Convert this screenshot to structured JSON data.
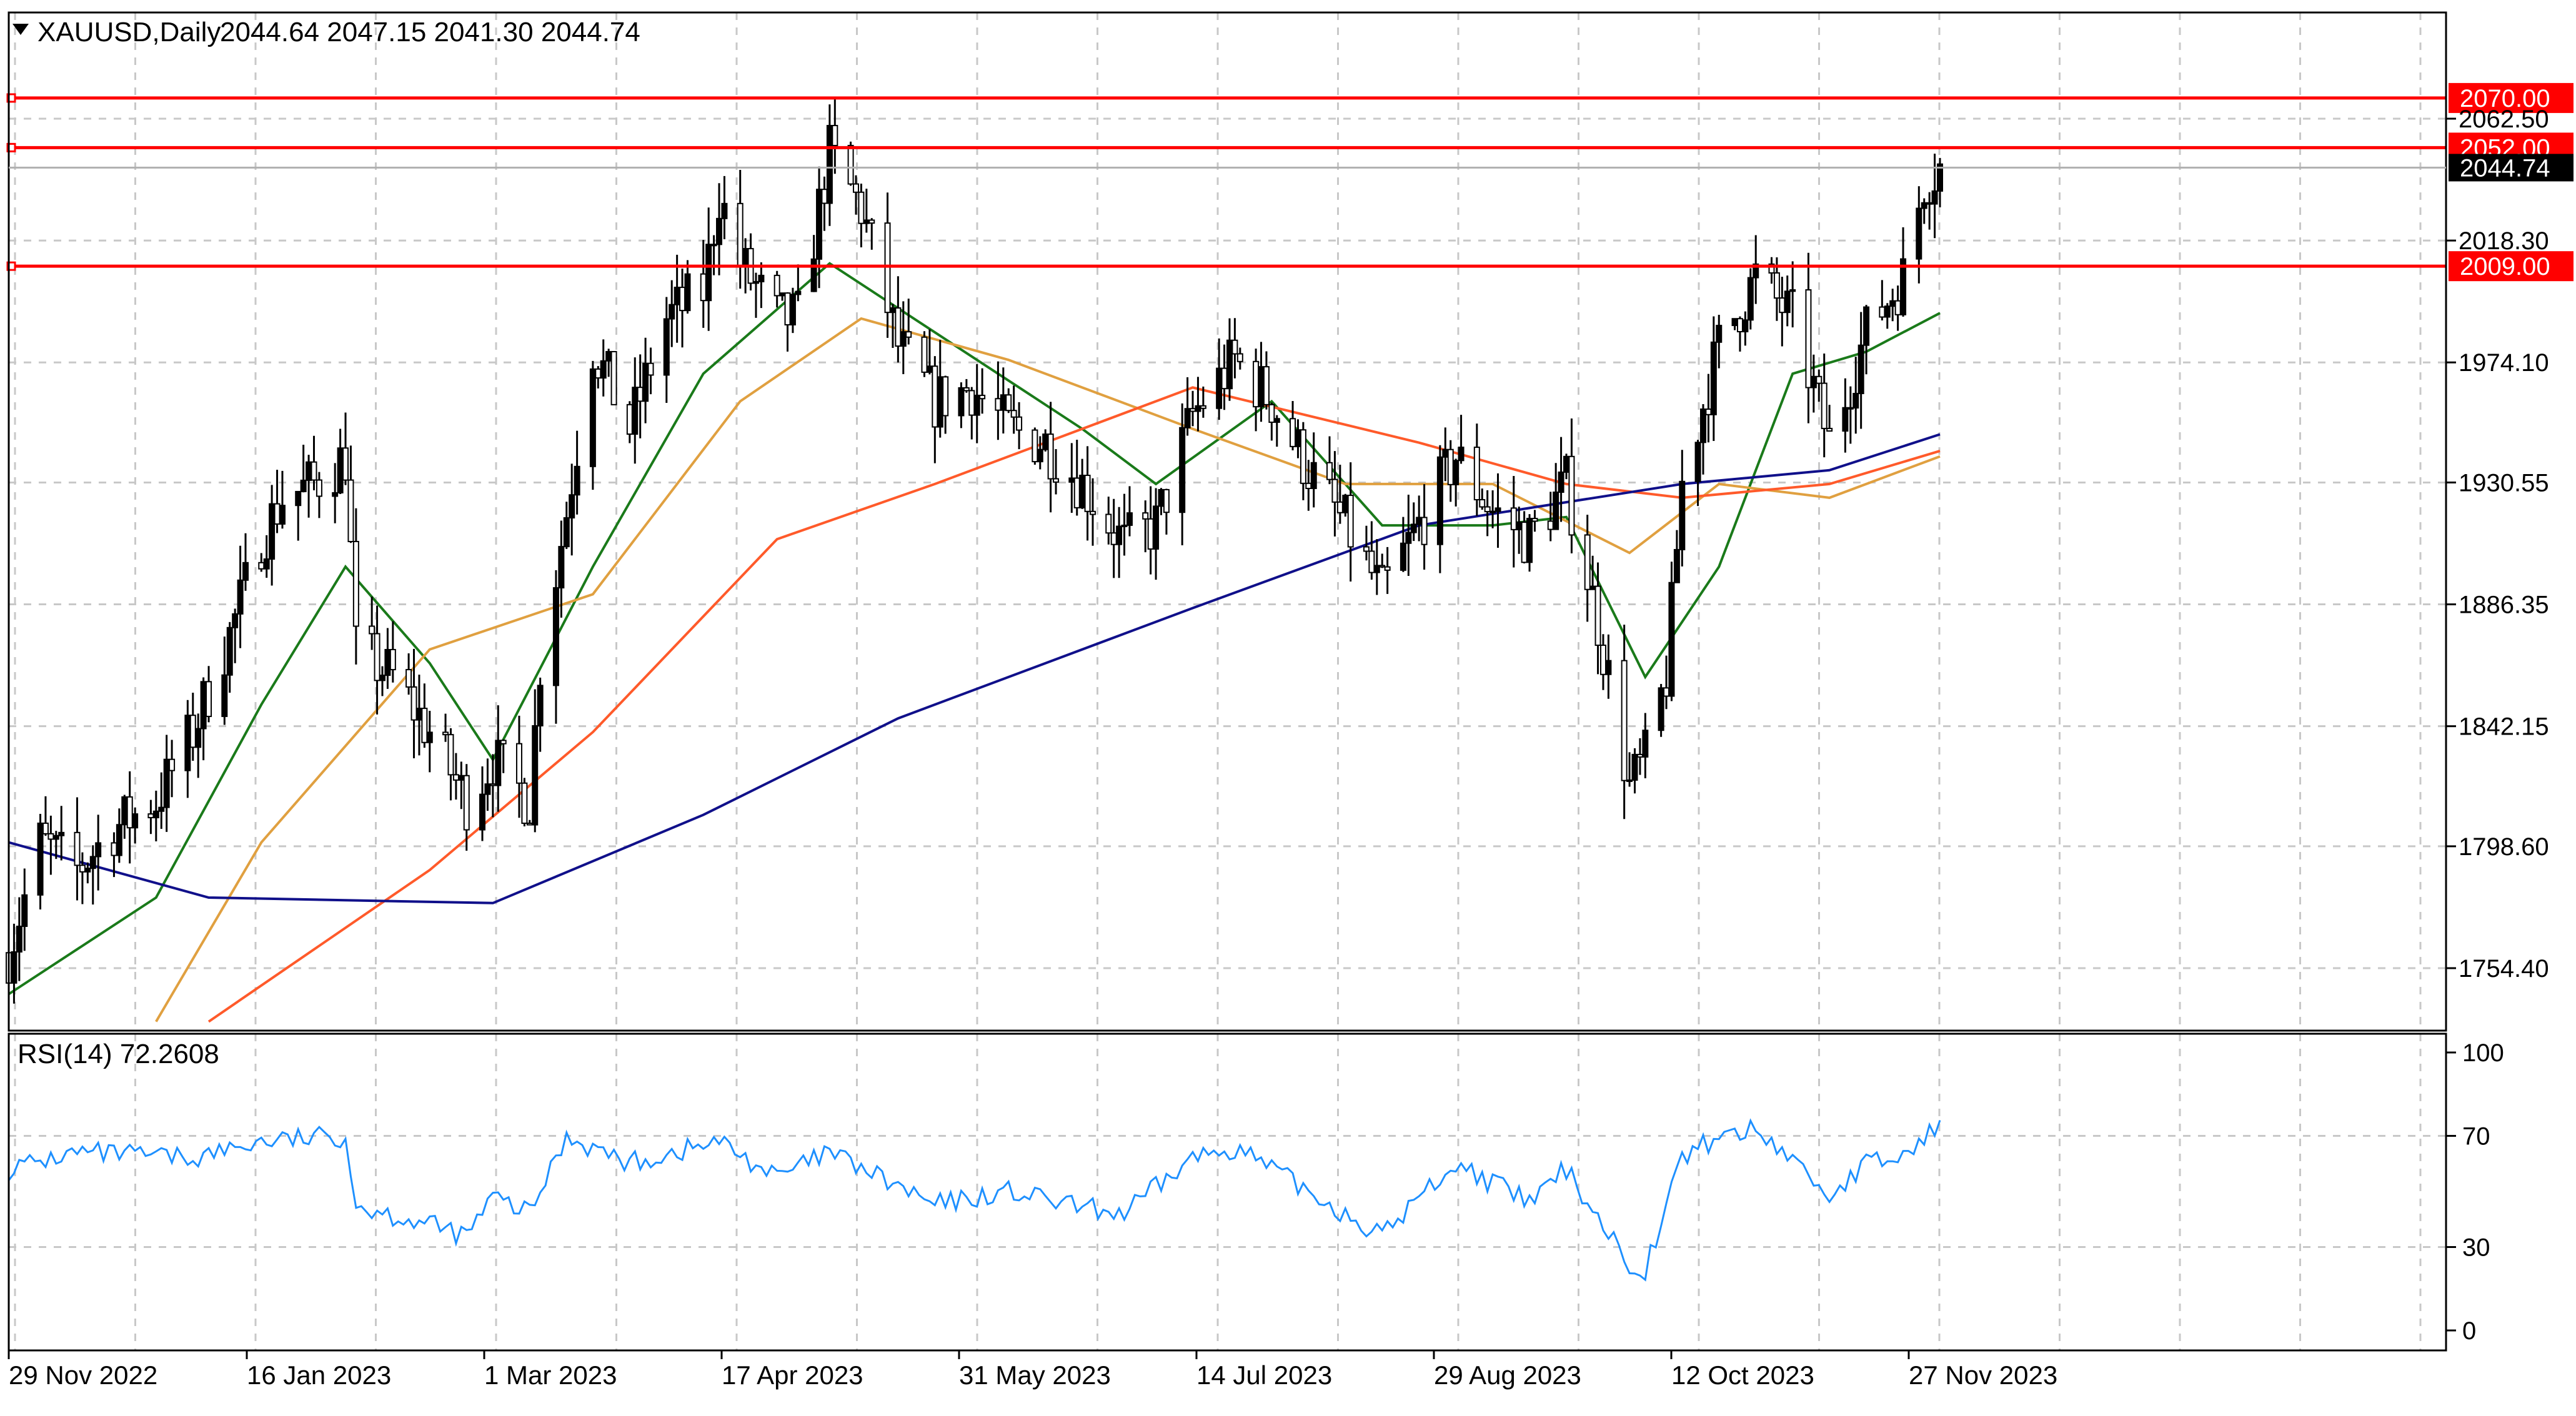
{
  "header": {
    "symbol": "XAUUSD,Daily",
    "ohlc": "2044.64 2047.15 2041.30 2044.74"
  },
  "price_axis": {
    "ticks": [
      "2062.50",
      "2018.30",
      "1974.10",
      "1930.55",
      "1886.35",
      "1842.15",
      "1798.60",
      "1754.40"
    ]
  },
  "current_price": {
    "label": "2044.74",
    "value": 2044.74
  },
  "levels": [
    {
      "label": "2070.00",
      "value": 2070.0,
      "color": "#ff0000"
    },
    {
      "label": "2052.00",
      "value": 2052.0,
      "color": "#ff0000"
    },
    {
      "label": "2009.00",
      "value": 2009.0,
      "color": "#ff0000"
    }
  ],
  "rsi_panel": {
    "label": "RSI(14) 72.2608",
    "ticks": [
      "100",
      "70",
      "30",
      "0"
    ],
    "line_color": "#1e90ff"
  },
  "time_axis": {
    "ticks": [
      "29 Nov 2022",
      "16 Jan 2023",
      "1 Mar 2023",
      "17 Apr 2023",
      "31 May 2023",
      "14 Jul 2023",
      "29 Aug 2023",
      "12 Oct 2023",
      "27 Nov 2023"
    ]
  },
  "colors": {
    "ma_fast": "#1a7a1a",
    "ma_mid": "#e0a040",
    "ma_slow": "#ff5a2a",
    "ma_200": "#10108a",
    "level": "#ff0000",
    "candle": "#000000",
    "grid": "#c8c8c8"
  },
  "chart_data": {
    "type": "candlestick",
    "symbol": "XAUUSD",
    "timeframe": "Daily",
    "x_range": [
      "2022-11-29",
      "2023-12-01"
    ],
    "ylim": [
      1732,
      2102
    ],
    "close_path": [
      [
        "2022-11-29",
        1760
      ],
      [
        "2022-12-05",
        1800
      ],
      [
        "2022-12-12",
        1790
      ],
      [
        "2022-12-19",
        1805
      ],
      [
        "2022-12-27",
        1815
      ],
      [
        "2023-01-03",
        1840
      ],
      [
        "2023-01-10",
        1875
      ],
      [
        "2023-01-16",
        1910
      ],
      [
        "2023-01-20",
        1925
      ],
      [
        "2023-01-26",
        1930
      ],
      [
        "2023-02-01",
        1940
      ],
      [
        "2023-02-03",
        1870
      ],
      [
        "2023-02-10",
        1860
      ],
      [
        "2023-02-17",
        1840
      ],
      [
        "2023-02-24",
        1815
      ],
      [
        "2023-03-01",
        1830
      ],
      [
        "2023-03-08",
        1815
      ],
      [
        "2023-03-10",
        1865
      ],
      [
        "2023-03-15",
        1920
      ],
      [
        "2023-03-20",
        1980
      ],
      [
        "2023-03-27",
        1950
      ],
      [
        "2023-04-03",
        1990
      ],
      [
        "2023-04-10",
        2000
      ],
      [
        "2023-04-13",
        2035
      ],
      [
        "2023-04-17",
        2010
      ],
      [
        "2023-04-24",
        1990
      ],
      [
        "2023-04-28",
        1990
      ],
      [
        "2023-05-04",
        2050
      ],
      [
        "2023-05-10",
        2030
      ],
      [
        "2023-05-17",
        1980
      ],
      [
        "2023-05-24",
        1960
      ],
      [
        "2023-05-31",
        1965
      ],
      [
        "2023-06-07",
        1950
      ],
      [
        "2023-06-14",
        1945
      ],
      [
        "2023-06-21",
        1930
      ],
      [
        "2023-06-29",
        1908
      ],
      [
        "2023-07-05",
        1915
      ],
      [
        "2023-07-12",
        1955
      ],
      [
        "2023-07-20",
        1975
      ],
      [
        "2023-07-27",
        1960
      ],
      [
        "2023-08-03",
        1935
      ],
      [
        "2023-08-10",
        1915
      ],
      [
        "2023-08-17",
        1890
      ],
      [
        "2023-08-24",
        1915
      ],
      [
        "2023-08-31",
        1940
      ],
      [
        "2023-09-07",
        1920
      ],
      [
        "2023-09-14",
        1910
      ],
      [
        "2023-09-21",
        1930
      ],
      [
        "2023-09-27",
        1880
      ],
      [
        "2023-10-03",
        1820
      ],
      [
        "2023-10-06",
        1830
      ],
      [
        "2023-10-10",
        1860
      ],
      [
        "2023-10-13",
        1930
      ],
      [
        "2023-10-20",
        1980
      ],
      [
        "2023-10-27",
        2005
      ],
      [
        "2023-11-03",
        1990
      ],
      [
        "2023-11-10",
        1945
      ],
      [
        "2023-11-17",
        1985
      ],
      [
        "2023-11-24",
        2005
      ],
      [
        "2023-11-28",
        2040
      ],
      [
        "2023-12-01",
        2044.74
      ]
    ],
    "moving_averages": [
      {
        "role": "fast",
        "points": [
          [
            "2022-11-29",
            1745
          ],
          [
            "2022-12-27",
            1780
          ],
          [
            "2023-01-16",
            1850
          ],
          [
            "2023-02-01",
            1900
          ],
          [
            "2023-02-17",
            1865
          ],
          [
            "2023-03-01",
            1830
          ],
          [
            "2023-03-20",
            1900
          ],
          [
            "2023-04-10",
            1970
          ],
          [
            "2023-05-04",
            2010
          ],
          [
            "2023-05-24",
            1985
          ],
          [
            "2023-06-21",
            1950
          ],
          [
            "2023-07-05",
            1930
          ],
          [
            "2023-07-27",
            1960
          ],
          [
            "2023-08-17",
            1915
          ],
          [
            "2023-09-07",
            1915
          ],
          [
            "2023-09-21",
            1918
          ],
          [
            "2023-10-06",
            1860
          ],
          [
            "2023-10-20",
            1900
          ],
          [
            "2023-11-03",
            1970
          ],
          [
            "2023-11-17",
            1978
          ],
          [
            "2023-12-01",
            1992
          ]
        ]
      },
      {
        "role": "mid",
        "points": [
          [
            "2022-12-27",
            1735
          ],
          [
            "2023-01-16",
            1800
          ],
          [
            "2023-02-17",
            1870
          ],
          [
            "2023-03-20",
            1890
          ],
          [
            "2023-04-17",
            1960
          ],
          [
            "2023-05-10",
            1990
          ],
          [
            "2023-06-07",
            1975
          ],
          [
            "2023-07-12",
            1950
          ],
          [
            "2023-08-10",
            1930
          ],
          [
            "2023-09-07",
            1930
          ],
          [
            "2023-10-03",
            1905
          ],
          [
            "2023-10-20",
            1930
          ],
          [
            "2023-11-10",
            1925
          ],
          [
            "2023-12-01",
            1940
          ]
        ]
      },
      {
        "role": "slow",
        "points": [
          [
            "2023-01-06",
            1735
          ],
          [
            "2023-02-17",
            1790
          ],
          [
            "2023-03-20",
            1840
          ],
          [
            "2023-04-24",
            1910
          ],
          [
            "2023-05-24",
            1930
          ],
          [
            "2023-07-12",
            1965
          ],
          [
            "2023-08-24",
            1945
          ],
          [
            "2023-09-21",
            1930
          ],
          [
            "2023-10-13",
            1925
          ],
          [
            "2023-11-10",
            1930
          ],
          [
            "2023-12-01",
            1942
          ]
        ]
      },
      {
        "role": "ma200",
        "points": [
          [
            "2022-11-29",
            1800
          ],
          [
            "2023-01-06",
            1780
          ],
          [
            "2023-03-01",
            1778
          ],
          [
            "2023-04-10",
            1810
          ],
          [
            "2023-05-17",
            1845
          ],
          [
            "2023-07-12",
            1885
          ],
          [
            "2023-08-24",
            1915
          ],
          [
            "2023-10-13",
            1930
          ],
          [
            "2023-11-10",
            1935
          ],
          [
            "2023-12-01",
            1948
          ]
        ]
      }
    ],
    "rsi": {
      "period": 14,
      "last": 72.2608,
      "ylim": [
        0,
        100
      ],
      "points": [
        [
          "2022-11-29",
          58
        ],
        [
          "2022-12-12",
          64
        ],
        [
          "2023-01-03",
          62
        ],
        [
          "2023-01-16",
          68
        ],
        [
          "2023-02-01",
          70
        ],
        [
          "2023-02-03",
          45
        ],
        [
          "2023-02-17",
          38
        ],
        [
          "2023-02-24",
          34
        ],
        [
          "2023-03-01",
          48
        ],
        [
          "2023-03-08",
          42
        ],
        [
          "2023-03-15",
          70
        ],
        [
          "2023-03-27",
          60
        ],
        [
          "2023-04-13",
          68
        ],
        [
          "2023-04-24",
          55
        ],
        [
          "2023-05-04",
          64
        ],
        [
          "2023-05-24",
          45
        ],
        [
          "2023-06-07",
          50
        ],
        [
          "2023-06-21",
          44
        ],
        [
          "2023-06-29",
          42
        ],
        [
          "2023-07-12",
          62
        ],
        [
          "2023-07-20",
          66
        ],
        [
          "2023-08-03",
          50
        ],
        [
          "2023-08-17",
          34
        ],
        [
          "2023-08-24",
          48
        ],
        [
          "2023-08-31",
          60
        ],
        [
          "2023-09-14",
          46
        ],
        [
          "2023-09-21",
          58
        ],
        [
          "2023-10-03",
          24
        ],
        [
          "2023-10-06",
          22
        ],
        [
          "2023-10-13",
          62
        ],
        [
          "2023-10-20",
          70
        ],
        [
          "2023-10-27",
          72
        ],
        [
          "2023-11-03",
          62
        ],
        [
          "2023-11-10",
          48
        ],
        [
          "2023-11-17",
          60
        ],
        [
          "2023-11-24",
          62
        ],
        [
          "2023-11-28",
          70
        ],
        [
          "2023-12-01",
          72.26
        ]
      ]
    }
  }
}
